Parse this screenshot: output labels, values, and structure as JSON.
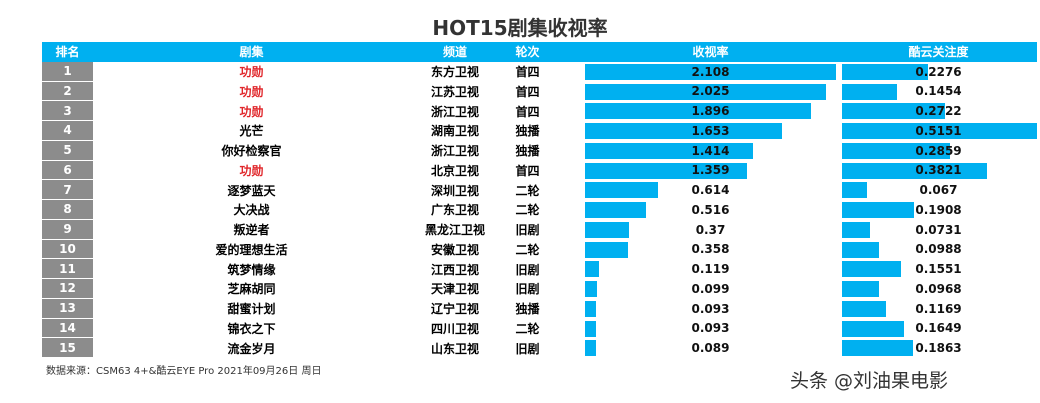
{
  "title": "HOT15剧集收视率",
  "chart_data": {
    "type": "table",
    "title": "HOT15剧集收视率",
    "columns": [
      "排名",
      "剧集",
      "频道",
      "轮次",
      "收视率",
      "酷云关注度"
    ],
    "rows": [
      [
        "1",
        "功勋",
        "东方卫视",
        "首四",
        2.108,
        0.2276
      ],
      [
        "2",
        "功勋",
        "江苏卫视",
        "首四",
        2.025,
        0.1454
      ],
      [
        "3",
        "功勋",
        "浙江卫视",
        "首四",
        1.896,
        0.2722
      ],
      [
        "4",
        "光芒",
        "湖南卫视",
        "独播",
        1.653,
        0.5151
      ],
      [
        "5",
        "你好检察官",
        "浙江卫视",
        "独播",
        1.414,
        0.2859
      ],
      [
        "6",
        "功勋",
        "北京卫视",
        "首四",
        1.359,
        0.3821
      ],
      [
        "7",
        "逐梦蓝天",
        "深圳卫视",
        "二轮",
        0.614,
        0.067
      ],
      [
        "8",
        "大决战",
        "广东卫视",
        "二轮",
        0.516,
        0.1908
      ],
      [
        "9",
        "叛逆者",
        "黑龙江卫视",
        "旧剧",
        0.37,
        0.0731
      ],
      [
        "10",
        "爱的理想生活",
        "安徽卫视",
        "二轮",
        0.358,
        0.0988
      ],
      [
        "11",
        "筑梦情缘",
        "江西卫视",
        "旧剧",
        0.119,
        0.1551
      ],
      [
        "12",
        "芝麻胡同",
        "天津卫视",
        "旧剧",
        0.099,
        0.0968
      ],
      [
        "13",
        "甜蜜计划",
        "辽宁卫视",
        "独播",
        0.093,
        0.1169
      ],
      [
        "14",
        "锦衣之下",
        "四川卫视",
        "二轮",
        0.093,
        0.1649
      ],
      [
        "15",
        "流金岁月",
        "山东卫视",
        "旧剧",
        0.089,
        0.1863
      ]
    ],
    "highlight_title": "功勋",
    "highlight_color": "#e0262a",
    "bar_color": "#00b0f0",
    "header_color": "#00b0f0"
  },
  "source": "数据来源：CSM63 4+&酷云EYE Pro 2021年09月26日 周日",
  "watermark": "头条 @刘油果电影"
}
